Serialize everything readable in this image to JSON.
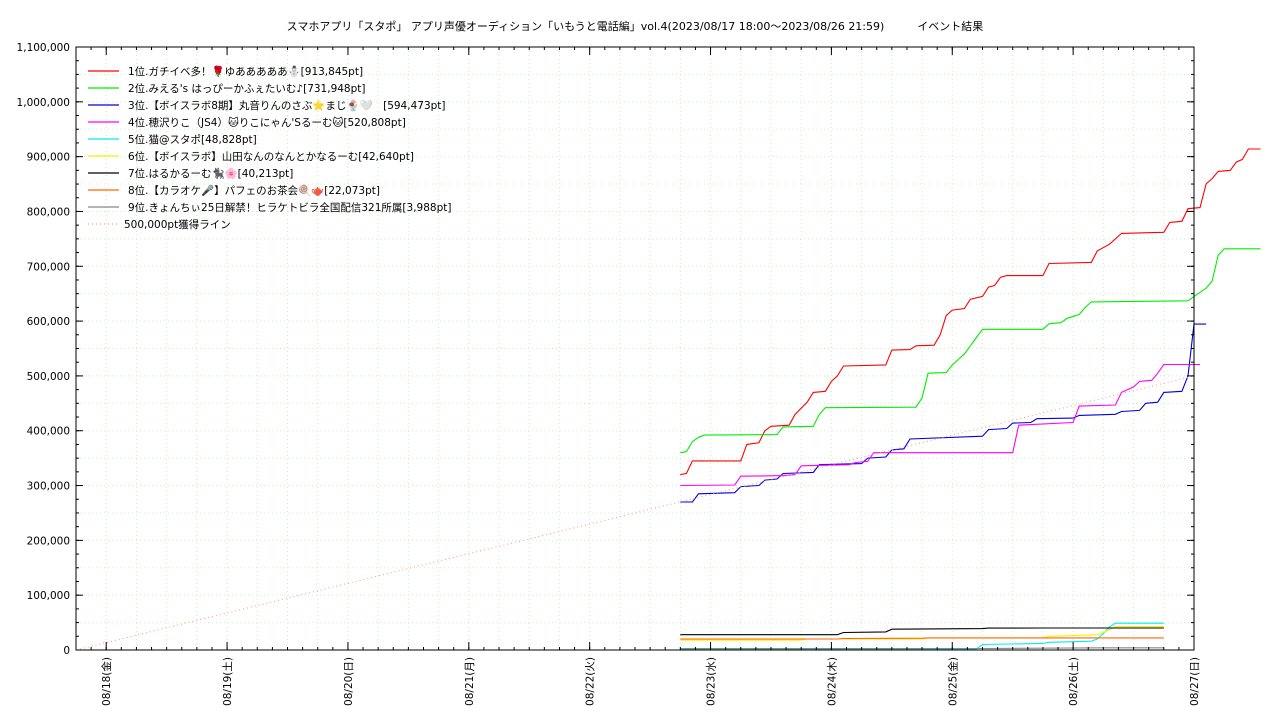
{
  "chart_data": {
    "type": "line",
    "title": "スマホアプリ「スタポ」 アプリ声優オーディション「いもうと電話編」vol.4(2023/08/17 18:00～2023/08/26 21:59)　　　イベント結果",
    "xlabel": "",
    "ylabel": "",
    "xlim": [
      0,
      9.25
    ],
    "ylim": [
      0,
      1100000
    ],
    "grid": true,
    "legend_position": "top-left",
    "x_ticks": [
      {
        "x": 0.25,
        "label": "08/18(金)"
      },
      {
        "x": 1.25,
        "label": "08/19(土)"
      },
      {
        "x": 2.25,
        "label": "08/20(日)"
      },
      {
        "x": 3.25,
        "label": "08/21(月)"
      },
      {
        "x": 4.25,
        "label": "08/22(火)"
      },
      {
        "x": 5.25,
        "label": "08/23(水)"
      },
      {
        "x": 6.25,
        "label": "08/24(木)"
      },
      {
        "x": 7.25,
        "label": "08/25(金)"
      },
      {
        "x": 8.25,
        "label": "08/26(土)"
      },
      {
        "x": 9.25,
        "label": "08/27(日)"
      }
    ],
    "y_ticks": [
      {
        "y": 0,
        "label": "0"
      },
      {
        "y": 100000,
        "label": "100,000"
      },
      {
        "y": 200000,
        "label": "200,000"
      },
      {
        "y": 300000,
        "label": "300,000"
      },
      {
        "y": 400000,
        "label": "400,000"
      },
      {
        "y": 500000,
        "label": "500,000"
      },
      {
        "y": 600000,
        "label": "600,000"
      },
      {
        "y": 700000,
        "label": "700,000"
      },
      {
        "y": 800000,
        "label": "800,000"
      },
      {
        "y": 900000,
        "label": "900,000"
      },
      {
        "y": 1000000,
        "label": "1,000,000"
      },
      {
        "y": 1100000,
        "label": "1,100,000"
      }
    ],
    "series": [
      {
        "name": "1位.ガチイベ多！🌹ゆあああああ⛄[913,845pt]",
        "color": "#ff0000",
        "style": "solid",
        "points": [
          [
            5.0,
            320000
          ],
          [
            5.05,
            322000
          ],
          [
            5.1,
            345000
          ],
          [
            5.5,
            345000
          ],
          [
            5.55,
            375000
          ],
          [
            5.65,
            378000
          ],
          [
            5.7,
            400000
          ],
          [
            5.75,
            408000
          ],
          [
            5.9,
            410000
          ],
          [
            5.95,
            430000
          ],
          [
            6.05,
            452000
          ],
          [
            6.1,
            470000
          ],
          [
            6.2,
            472000
          ],
          [
            6.25,
            490000
          ],
          [
            6.3,
            500000
          ],
          [
            6.35,
            518000
          ],
          [
            6.7,
            520000
          ],
          [
            6.75,
            547000
          ],
          [
            6.9,
            548000
          ],
          [
            6.95,
            555000
          ],
          [
            7.1,
            556000
          ],
          [
            7.15,
            575000
          ],
          [
            7.2,
            610000
          ],
          [
            7.25,
            620000
          ],
          [
            7.35,
            623000
          ],
          [
            7.4,
            640000
          ],
          [
            7.5,
            645000
          ],
          [
            7.55,
            662000
          ],
          [
            7.6,
            665000
          ],
          [
            7.65,
            680000
          ],
          [
            7.7,
            683000
          ],
          [
            8.0,
            683000
          ],
          [
            8.05,
            705000
          ],
          [
            8.4,
            707000
          ],
          [
            8.45,
            728000
          ],
          [
            8.55,
            740000
          ],
          [
            8.65,
            760000
          ],
          [
            9.0,
            762000
          ],
          [
            9.05,
            780000
          ],
          [
            9.15,
            782000
          ],
          [
            9.2,
            805000
          ],
          [
            9.3,
            807000
          ],
          [
            9.35,
            850000
          ],
          [
            9.4,
            860000
          ],
          [
            9.45,
            873000
          ],
          [
            9.55,
            875000
          ],
          [
            9.6,
            890000
          ],
          [
            9.65,
            895000
          ],
          [
            9.7,
            913845
          ],
          [
            9.8,
            913845
          ]
        ]
      },
      {
        "name": "2位.みえる's はっぴーかふぇたいむ♪[731,948pt]",
        "color": "#00ee00",
        "style": "solid",
        "points": [
          [
            5.0,
            360000
          ],
          [
            5.05,
            362000
          ],
          [
            5.1,
            380000
          ],
          [
            5.15,
            388000
          ],
          [
            5.2,
            392000
          ],
          [
            5.8,
            393000
          ],
          [
            5.85,
            407000
          ],
          [
            6.1,
            408000
          ],
          [
            6.15,
            430000
          ],
          [
            6.2,
            442000
          ],
          [
            6.95,
            443000
          ],
          [
            7.0,
            460000
          ],
          [
            7.05,
            505000
          ],
          [
            7.2,
            506000
          ],
          [
            7.25,
            520000
          ],
          [
            7.3,
            530000
          ],
          [
            7.35,
            540000
          ],
          [
            7.4,
            555000
          ],
          [
            7.45,
            570000
          ],
          [
            7.5,
            585000
          ],
          [
            8.0,
            585000
          ],
          [
            8.05,
            595000
          ],
          [
            8.15,
            597000
          ],
          [
            8.2,
            605000
          ],
          [
            8.3,
            612000
          ],
          [
            8.35,
            625000
          ],
          [
            8.4,
            635000
          ],
          [
            9.2,
            637000
          ],
          [
            9.25,
            645000
          ],
          [
            9.35,
            660000
          ],
          [
            9.4,
            673000
          ],
          [
            9.45,
            720000
          ],
          [
            9.5,
            731948
          ],
          [
            9.8,
            731948
          ]
        ]
      },
      {
        "name": "3位.【ボイスラボ8期】丸音りんのさぶ⭐まじ🍨🤍　[594,473pt]",
        "color": "#0000dd",
        "style": "solid",
        "points": [
          [
            5.0,
            270000
          ],
          [
            5.1,
            270000
          ],
          [
            5.15,
            285000
          ],
          [
            5.45,
            287000
          ],
          [
            5.5,
            298000
          ],
          [
            5.65,
            300000
          ],
          [
            5.7,
            310000
          ],
          [
            5.8,
            312000
          ],
          [
            5.85,
            322000
          ],
          [
            6.1,
            324000
          ],
          [
            6.15,
            338000
          ],
          [
            6.5,
            340000
          ],
          [
            6.55,
            350000
          ],
          [
            6.7,
            352000
          ],
          [
            6.75,
            365000
          ],
          [
            6.85,
            367000
          ],
          [
            6.9,
            385000
          ],
          [
            7.5,
            390000
          ],
          [
            7.55,
            402000
          ],
          [
            7.7,
            404000
          ],
          [
            7.75,
            414000
          ],
          [
            7.9,
            415000
          ],
          [
            7.95,
            422000
          ],
          [
            8.25,
            423000
          ],
          [
            8.3,
            428000
          ],
          [
            8.6,
            430000
          ],
          [
            8.65,
            435000
          ],
          [
            8.8,
            437000
          ],
          [
            8.85,
            450000
          ],
          [
            8.95,
            452000
          ],
          [
            9.0,
            470000
          ],
          [
            9.15,
            472000
          ],
          [
            9.2,
            500000
          ],
          [
            9.25,
            594473
          ],
          [
            9.35,
            594473
          ]
        ]
      },
      {
        "name": "4位.穂沢りこ（JS4）🐱りこにゃん'Sるーむ🐱[520,808pt]",
        "color": "#ff00ff",
        "style": "solid",
        "points": [
          [
            5.0,
            300000
          ],
          [
            5.45,
            301000
          ],
          [
            5.5,
            317000
          ],
          [
            5.8,
            318000
          ],
          [
            5.85,
            318000
          ],
          [
            5.95,
            320000
          ],
          [
            6.0,
            336000
          ],
          [
            6.4,
            338000
          ],
          [
            6.45,
            342000
          ],
          [
            6.55,
            344000
          ],
          [
            6.6,
            360000
          ],
          [
            7.75,
            360000
          ],
          [
            7.8,
            410000
          ],
          [
            8.25,
            415000
          ],
          [
            8.3,
            445000
          ],
          [
            8.6,
            447000
          ],
          [
            8.65,
            470000
          ],
          [
            8.75,
            480000
          ],
          [
            8.8,
            490000
          ],
          [
            8.9,
            492000
          ],
          [
            8.95,
            505000
          ],
          [
            9.0,
            520808
          ],
          [
            9.3,
            520808
          ]
        ]
      },
      {
        "name": "5位.猫@スタポ[48,828pt]",
        "color": "#00eeee",
        "style": "solid",
        "points": [
          [
            5.0,
            2000
          ],
          [
            7.45,
            2000
          ],
          [
            7.5,
            10000
          ],
          [
            8.0,
            12000
          ],
          [
            8.05,
            14000
          ],
          [
            8.4,
            16000
          ],
          [
            8.45,
            20000
          ],
          [
            8.5,
            30000
          ],
          [
            8.55,
            42000
          ],
          [
            8.6,
            48828
          ],
          [
            9.0,
            48828
          ]
        ]
      },
      {
        "name": "6位.【ボイスラボ】山田なんのなんとかなるーむ[42,640pt]",
        "color": "#ffee00",
        "style": "solid",
        "points": [
          [
            5.0,
            18000
          ],
          [
            6.0,
            18000
          ],
          [
            6.05,
            20000
          ],
          [
            7.0,
            20000
          ],
          [
            7.05,
            22000
          ],
          [
            8.0,
            22000
          ],
          [
            8.05,
            25000
          ],
          [
            8.45,
            28000
          ],
          [
            8.5,
            32000
          ],
          [
            8.6,
            42640
          ],
          [
            9.0,
            42640
          ]
        ]
      },
      {
        "name": "7位.はるかるーむ🐈‍⬛🌸[40,213pt]",
        "color": "#000000",
        "style": "solid",
        "points": [
          [
            5.0,
            28000
          ],
          [
            6.3,
            28000
          ],
          [
            6.35,
            32000
          ],
          [
            6.7,
            33000
          ],
          [
            6.75,
            38000
          ],
          [
            7.5,
            39000
          ],
          [
            7.55,
            40000
          ],
          [
            8.0,
            40213
          ],
          [
            9.0,
            40213
          ]
        ]
      },
      {
        "name": "8位.【カラオケ🎤】パフェのお茶会🍭🫖[22,073pt]",
        "color": "#ff6600",
        "style": "solid",
        "points": [
          [
            5.0,
            20000
          ],
          [
            6.3,
            20000
          ],
          [
            6.35,
            21000
          ],
          [
            7.0,
            21500
          ],
          [
            7.05,
            22073
          ],
          [
            9.0,
            22073
          ]
        ]
      },
      {
        "name": "9位.きょんちぃ25日解禁！ヒラケトビラ全国配信321所属[3,988pt]",
        "color": "#888888",
        "style": "solid",
        "points": [
          [
            5.0,
            2500
          ],
          [
            7.5,
            2800
          ],
          [
            8.5,
            3988
          ],
          [
            9.0,
            3988
          ]
        ]
      },
      {
        "name": "500,000pt獲得ライン",
        "color": "#ff9999",
        "style": "dotted",
        "points": [
          [
            0,
            0
          ],
          [
            9.25,
            500000
          ]
        ]
      }
    ]
  }
}
